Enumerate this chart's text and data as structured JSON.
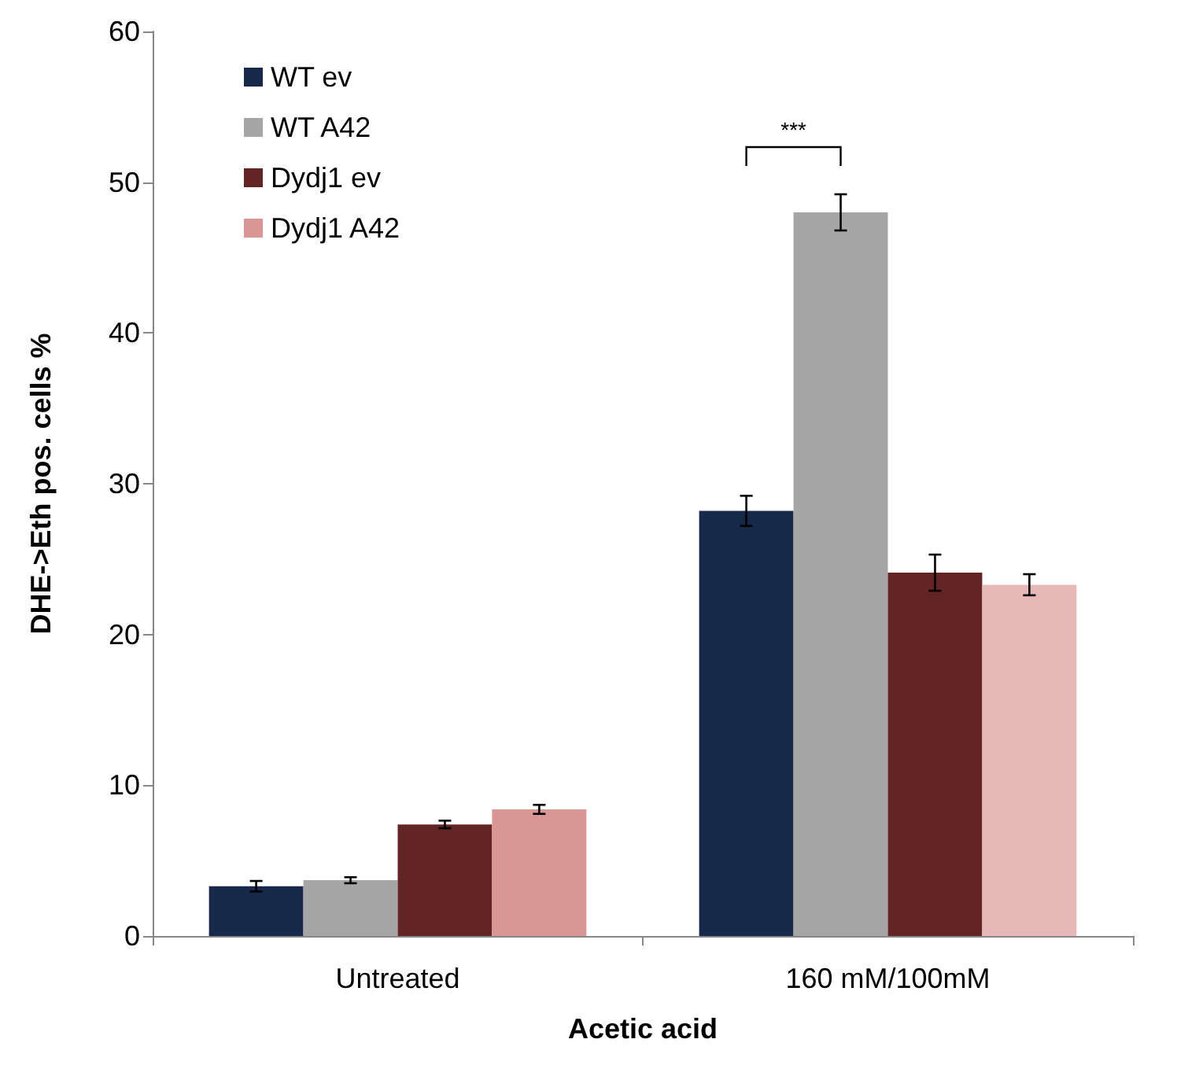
{
  "chart_data": {
    "type": "bar",
    "xlabel": "Acetic acid",
    "ylabel": "DHE->Eth pos. cells %",
    "categories": [
      "Untreated",
      "160 mM/100mM"
    ],
    "series": [
      {
        "name": "WT ev",
        "color": "#17294a",
        "values": [
          3.3,
          28.2
        ],
        "errors": [
          0.35,
          1.0
        ]
      },
      {
        "name": "WT A42",
        "color": "#a6a6a6",
        "values": [
          3.7,
          48.0
        ],
        "errors": [
          0.2,
          1.2
        ]
      },
      {
        "name": "Dydj1 ev",
        "color": "#632523",
        "values": [
          7.4,
          24.1
        ],
        "errors": [
          0.25,
          1.2
        ]
      },
      {
        "name": "Dydj1 A42",
        "color": "#d99694",
        "colors": [
          "#d99694",
          "#e6b9b8"
        ],
        "values": [
          8.4,
          23.3
        ],
        "errors": [
          0.3,
          0.7
        ]
      }
    ],
    "ylim": [
      0,
      60
    ],
    "yticks": [
      0,
      10,
      20,
      30,
      40,
      50,
      60
    ],
    "grid": false,
    "legend": "top left",
    "annotations": [
      "***"
    ]
  }
}
